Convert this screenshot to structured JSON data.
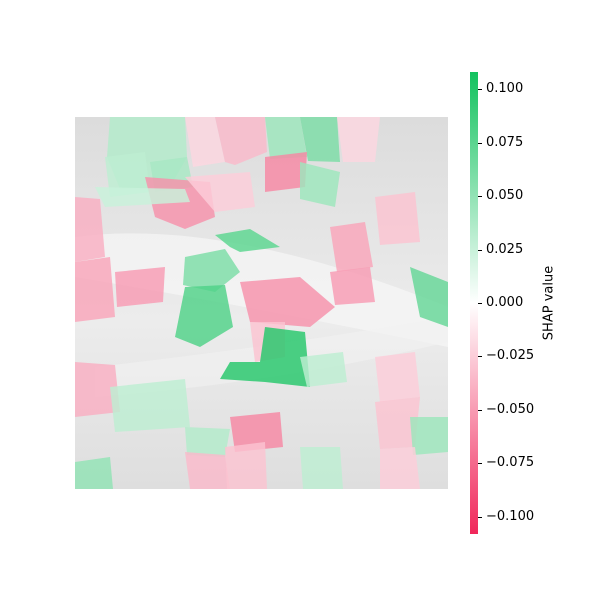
{
  "chart_data": {
    "type": "heatmap",
    "title": "",
    "colorbar": {
      "label": "SHAP value",
      "min": -0.108,
      "max": 0.108,
      "ticks": [
        0.1,
        0.075,
        0.05,
        0.025,
        0.0,
        -0.025,
        -0.05,
        -0.075,
        -0.1
      ],
      "tick_labels": [
        "0.100",
        "0.075",
        "0.050",
        "0.025",
        "0.000",
        "−0.025",
        "−0.050",
        "−0.075",
        "−0.100"
      ],
      "colors": {
        "positive": "#12c25e",
        "neutral": "#ffffff",
        "negative": "#f0275a"
      }
    },
    "segments": [
      {
        "name": "seg-top-left-green",
        "value": 0.035
      },
      {
        "name": "seg-top-center-green",
        "value": 0.04
      },
      {
        "name": "seg-top-pink-1",
        "value": -0.02
      },
      {
        "name": "seg-top-pink-2",
        "value": -0.035
      },
      {
        "name": "seg-top-right-green-1",
        "value": 0.045
      },
      {
        "name": "seg-top-right-green-2",
        "value": 0.06
      },
      {
        "name": "seg-upper-right-pink",
        "value": -0.02
      },
      {
        "name": "seg-upper-left-light-green",
        "value": 0.03
      },
      {
        "name": "seg-upper-center-pink",
        "value": -0.055
      },
      {
        "name": "seg-upper-center-light-green",
        "value": 0.025
      },
      {
        "name": "seg-upper-mid-pink",
        "value": -0.025
      },
      {
        "name": "seg-hot-pink-top",
        "value": -0.06
      },
      {
        "name": "seg-green-top-right-small",
        "value": 0.045
      },
      {
        "name": "seg-left-pink-strip",
        "value": -0.04
      },
      {
        "name": "seg-center-pink-1",
        "value": -0.05
      },
      {
        "name": "seg-center-green-upper",
        "value": 0.075
      },
      {
        "name": "seg-right-pink-upper",
        "value": -0.045
      },
      {
        "name": "seg-right-pink-mid",
        "value": -0.05
      },
      {
        "name": "seg-far-right-pink",
        "value": -0.03
      },
      {
        "name": "seg-left-pink-mid",
        "value": -0.045
      },
      {
        "name": "seg-center-green-mid",
        "value": 0.06
      },
      {
        "name": "seg-center-green-lower",
        "value": 0.08
      },
      {
        "name": "seg-center-pink-2",
        "value": -0.055
      },
      {
        "name": "seg-right-green-edge",
        "value": 0.07
      },
      {
        "name": "seg-left-pink-lower",
        "value": -0.04
      },
      {
        "name": "seg-center-pink-3",
        "value": -0.03
      },
      {
        "name": "seg-center-green-strongest",
        "value": 0.1
      },
      {
        "name": "seg-center-light-green-lower",
        "value": 0.03
      },
      {
        "name": "seg-right-pink-lower",
        "value": -0.025
      },
      {
        "name": "seg-left-light-green-lower",
        "value": 0.03
      },
      {
        "name": "seg-lower-center-pink",
        "value": -0.06
      },
      {
        "name": "seg-lower-center-light-green",
        "value": 0.035
      },
      {
        "name": "seg-lower-right-pink",
        "value": -0.03
      },
      {
        "name": "seg-lower-right-green",
        "value": 0.045
      },
      {
        "name": "seg-bottom-left-green",
        "value": 0.05
      },
      {
        "name": "seg-bottom-pink-1",
        "value": -0.035
      },
      {
        "name": "seg-bottom-pink-2",
        "value": -0.03
      },
      {
        "name": "seg-bottom-light-green",
        "value": 0.03
      },
      {
        "name": "seg-bottom-right-pink",
        "value": -0.025
      }
    ]
  }
}
